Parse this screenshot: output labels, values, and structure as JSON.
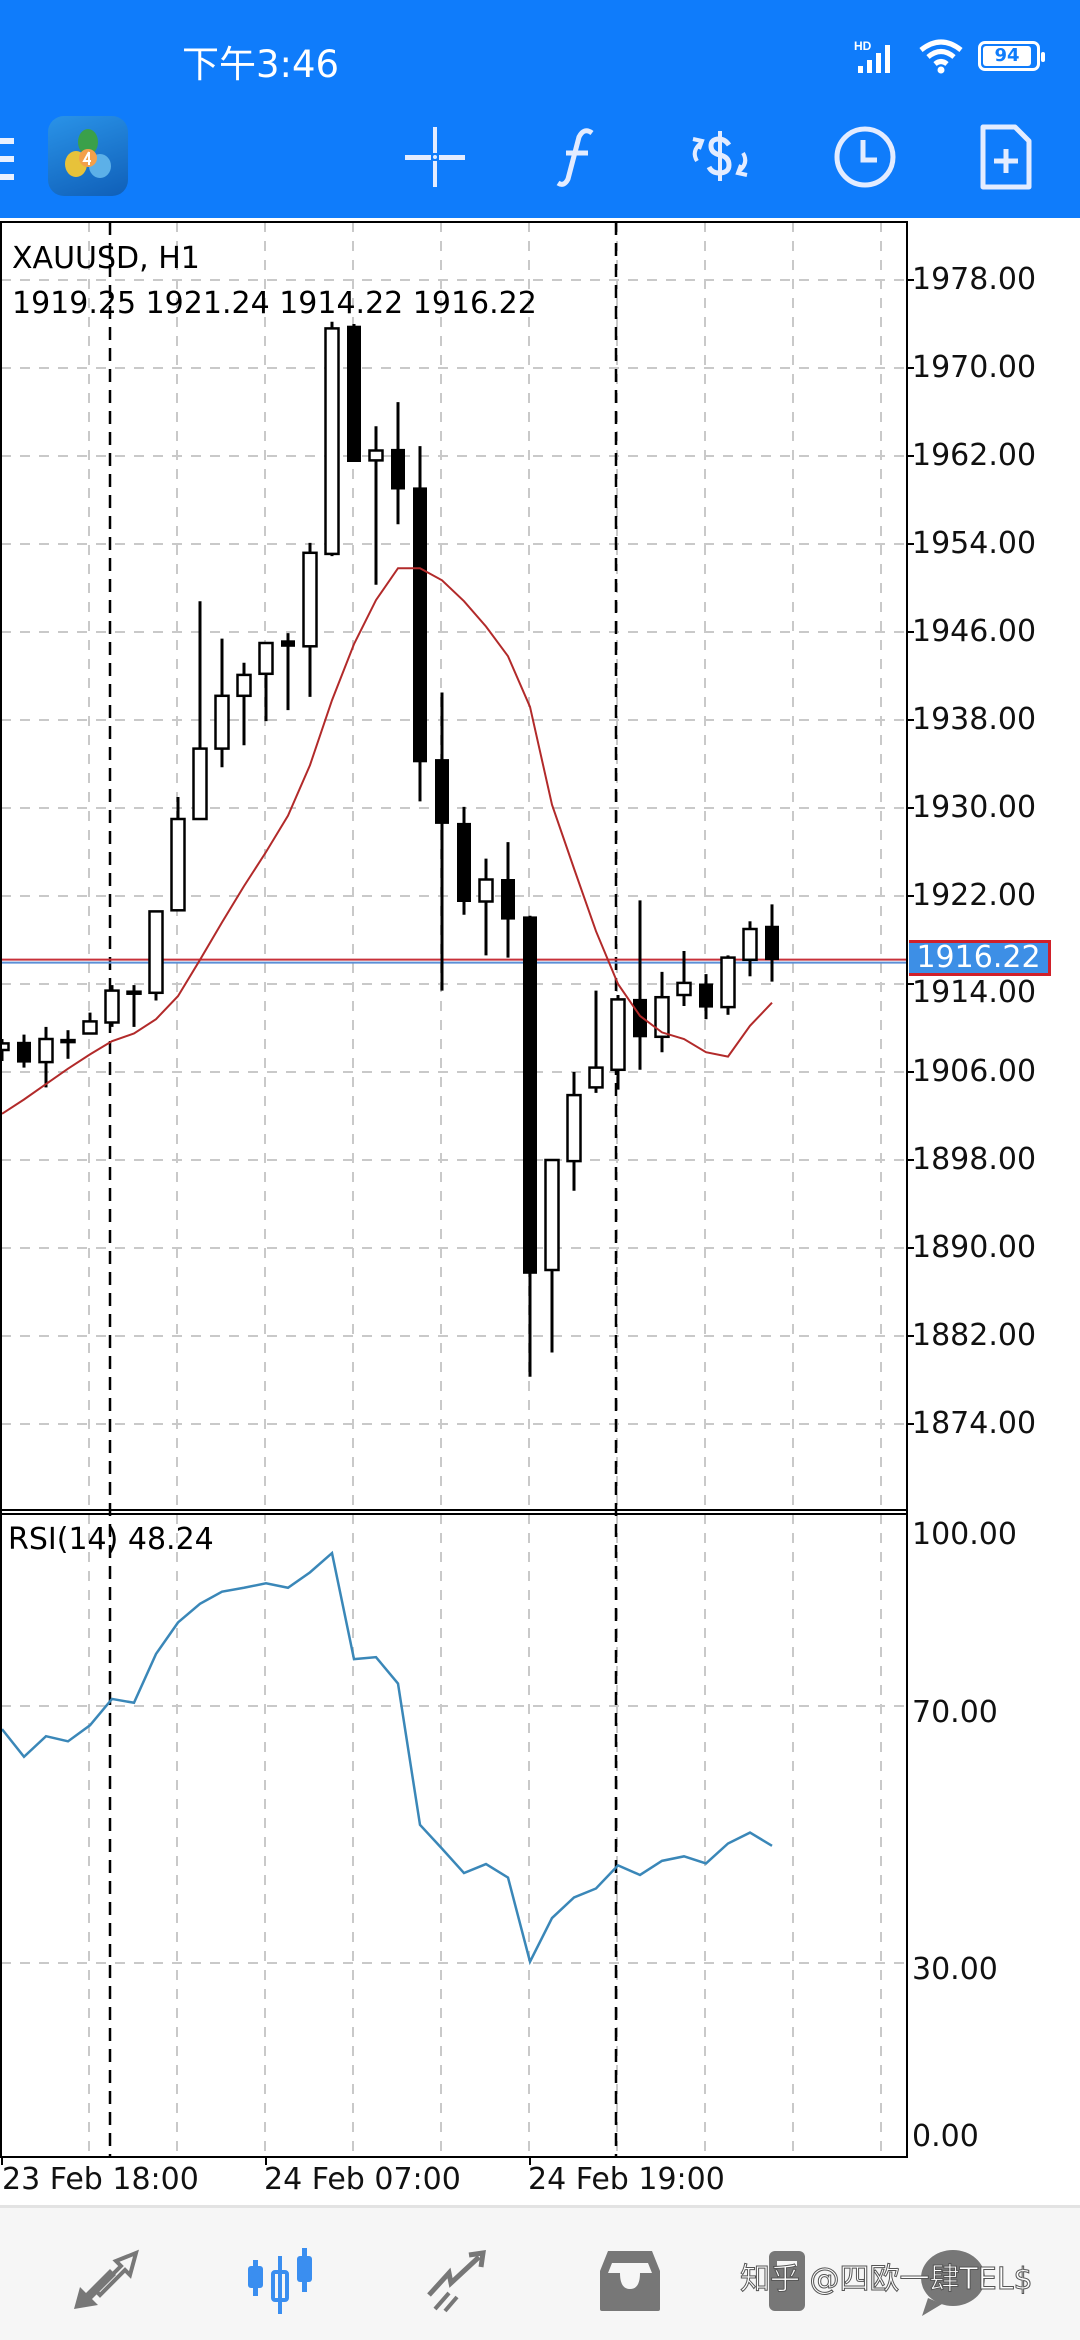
{
  "status_bar": {
    "time": "下午3:46",
    "network": "HD",
    "battery": "94"
  },
  "toolbar": {
    "icons": [
      "menu-icon",
      "mt4-logo",
      "crosshair-icon",
      "indicator-f-icon",
      "trade-dollar-icon",
      "timeframe-clock-icon",
      "new-order-icon"
    ]
  },
  "chart": {
    "symbol_label": "XAUUSD, H1",
    "ohlc_label": "1919.25 1921.24 1914.22 1916.22",
    "current_price": "1916.22",
    "colors": {
      "header": "#0f7cfb",
      "ma_line": "#b22a2a",
      "bid_line": "#c8303a",
      "ask_line": "#5b8fd6",
      "rsi_line": "#3a87b8",
      "price_tag": "#3d8fe6",
      "nav_active": "#3a8ef0"
    }
  },
  "chart_data": [
    {
      "type": "candlestick",
      "title": "XAUUSD, H1",
      "ylim": [
        1866,
        1982
      ],
      "y_ticks": [
        "1978.00",
        "1970.00",
        "1962.00",
        "1954.00",
        "1946.00",
        "1938.00",
        "1930.00",
        "1922.00",
        "1914.00",
        "1906.00",
        "1898.00",
        "1890.00",
        "1882.00",
        "1874.00"
      ],
      "x_ticks": [
        {
          "bar": 0,
          "label": "23 Feb 18:00"
        },
        {
          "bar": 12,
          "label": "24 Feb 07:00"
        },
        {
          "bar": 24,
          "label": "24 Feb 19:00"
        }
      ],
      "grid": true,
      "candles": [
        [
          1908.0,
          1909.0,
          1907.0,
          1908.6
        ],
        [
          1908.7,
          1909.4,
          1906.4,
          1906.9
        ],
        [
          1906.9,
          1910.1,
          1904.6,
          1909.0
        ],
        [
          1908.9,
          1909.8,
          1907.2,
          1908.9
        ],
        [
          1909.5,
          1911.4,
          1909.5,
          1910.6
        ],
        [
          1910.5,
          1913.9,
          1910.1,
          1913.4
        ],
        [
          1913.3,
          1913.9,
          1910.1,
          1913.3
        ],
        [
          1913.2,
          1920.6,
          1912.5,
          1920.6
        ],
        [
          1920.7,
          1931.0,
          1920.7,
          1929.0
        ],
        [
          1929.0,
          1948.8,
          1929.0,
          1935.4
        ],
        [
          1935.4,
          1945.4,
          1933.7,
          1940.2
        ],
        [
          1940.2,
          1943.2,
          1935.7,
          1942.1
        ],
        [
          1942.2,
          1945.0,
          1937.9,
          1945.0
        ],
        [
          1945.2,
          1945.9,
          1938.9,
          1944.7
        ],
        [
          1944.7,
          1954.1,
          1940.1,
          1953.2
        ],
        [
          1953.1,
          1974.2,
          1952.9,
          1973.6
        ],
        [
          1973.8,
          1974.0,
          1961.5,
          1961.5
        ],
        [
          1961.6,
          1964.7,
          1950.3,
          1962.5
        ],
        [
          1962.6,
          1966.9,
          1955.8,
          1959.0
        ],
        [
          1959.1,
          1962.9,
          1930.6,
          1934.2
        ],
        [
          1934.4,
          1940.5,
          1913.4,
          1928.6
        ],
        [
          1928.6,
          1930.1,
          1920.3,
          1921.5
        ],
        [
          1921.5,
          1925.4,
          1916.6,
          1923.5
        ],
        [
          1923.5,
          1926.9,
          1916.4,
          1919.9
        ],
        [
          1920.1,
          1920.2,
          1878.3,
          1887.7
        ],
        [
          1888.0,
          1898.0,
          1880.5,
          1898.0
        ],
        [
          1897.9,
          1906.0,
          1895.2,
          1903.9
        ],
        [
          1904.6,
          1913.4,
          1904.1,
          1906.4
        ],
        [
          1906.2,
          1913.0,
          1904.4,
          1912.6
        ],
        [
          1912.6,
          1921.6,
          1906.2,
          1909.2
        ],
        [
          1909.2,
          1915.1,
          1907.8,
          1912.8
        ],
        [
          1913.0,
          1917.0,
          1912.0,
          1914.1
        ],
        [
          1914.0,
          1914.9,
          1910.8,
          1911.9
        ],
        [
          1911.9,
          1916.6,
          1911.2,
          1916.4
        ],
        [
          1916.2,
          1919.7,
          1914.7,
          1919.0
        ],
        [
          1919.25,
          1921.24,
          1914.22,
          1916.22
        ]
      ],
      "candle_fields": [
        "open",
        "high",
        "low",
        "close"
      ],
      "moving_average": [
        1902.2,
        1903.5,
        1904.9,
        1906.3,
        1907.6,
        1908.8,
        1909.5,
        1910.8,
        1912.9,
        1916.2,
        1919.6,
        1922.9,
        1926.0,
        1929.3,
        1933.9,
        1939.8,
        1944.9,
        1948.9,
        1951.8,
        1951.8,
        1950.7,
        1948.8,
        1946.5,
        1943.8,
        1939.2,
        1930.3,
        1924.5,
        1918.8,
        1914.0,
        1911.1,
        1909.6,
        1909.0,
        1907.8,
        1907.4,
        1910.2,
        1912.3
      ],
      "bid": 1916.22,
      "period_separator_bars": [
        5,
        28
      ]
    },
    {
      "type": "line",
      "title": "RSI(14) 48.24",
      "ylim": [
        0,
        100
      ],
      "y_ticks": [
        "100.00",
        "70.00",
        "30.00",
        "0.00"
      ],
      "levels": [
        70,
        30
      ],
      "values": [
        66.4,
        62.1,
        65.3,
        64.5,
        67.0,
        71.1,
        70.5,
        78.1,
        83.0,
        85.9,
        87.8,
        88.4,
        89.1,
        88.4,
        90.8,
        93.8,
        77.3,
        77.6,
        73.5,
        51.5,
        47.8,
        44.0,
        45.4,
        43.3,
        30.2,
        37.0,
        40.2,
        41.6,
        45.2,
        43.7,
        45.9,
        46.6,
        45.5,
        48.6,
        50.3,
        48.24
      ]
    }
  ],
  "rsi": {
    "label": "RSI(14) 48.24"
  },
  "bottom_nav": {
    "items": [
      {
        "name": "quotes",
        "icon": "quotes-arrows-icon",
        "active": false
      },
      {
        "name": "chart",
        "icon": "candles-icon",
        "active": true
      },
      {
        "name": "trade",
        "icon": "trade-trend-icon",
        "active": false
      },
      {
        "name": "history",
        "icon": "inbox-icon",
        "active": false
      },
      {
        "name": "messages",
        "icon": "messages-icon",
        "active": false
      }
    ]
  },
  "watermark": "知乎 @四欧一肆TEL$"
}
